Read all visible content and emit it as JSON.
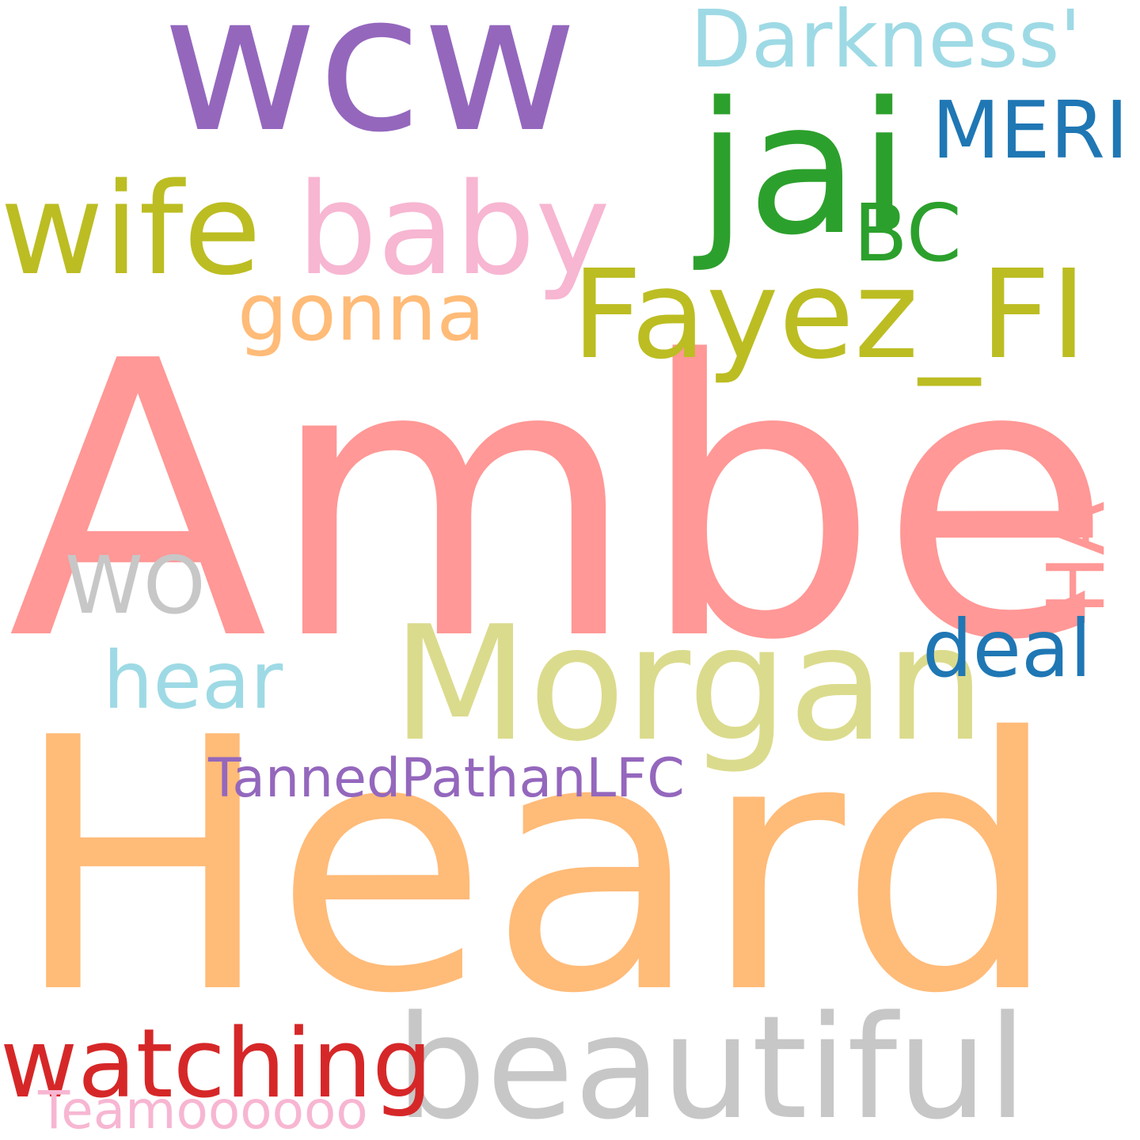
{
  "words": [
    {
      "text": "Amber",
      "color": "#ff9896"
    },
    {
      "text": "Heard",
      "color": "#ffbb78"
    },
    {
      "text": "wcw",
      "color": "#9467bd"
    },
    {
      "text": "jai",
      "color": "#2ca02c"
    },
    {
      "text": "Morgan",
      "color": "#dbdb8d"
    },
    {
      "text": "beautiful",
      "color": "#c7c7c7"
    },
    {
      "text": "baby",
      "color": "#f7b6d2"
    },
    {
      "text": "wife",
      "color": "#bcbd22"
    },
    {
      "text": "Fayez_FI",
      "color": "#bcbd22"
    },
    {
      "text": "watching",
      "color": "#d62728"
    },
    {
      "text": "Darkness'",
      "color": "#9edae5"
    },
    {
      "text": "MERI",
      "color": "#1f77b4"
    },
    {
      "text": "deal",
      "color": "#1f77b4"
    },
    {
      "text": "hear",
      "color": "#9edae5"
    },
    {
      "text": "gonna",
      "color": "#ffbb78"
    },
    {
      "text": "BC",
      "color": "#2ca02c"
    },
    {
      "text": "WO",
      "color": "#c7c7c7"
    },
    {
      "text": "HA",
      "color": "#ff9896"
    },
    {
      "text": "TannedPathanLFC",
      "color": "#9467bd"
    },
    {
      "text": "Teamoooooo",
      "color": "#f7b6d2"
    }
  ]
}
